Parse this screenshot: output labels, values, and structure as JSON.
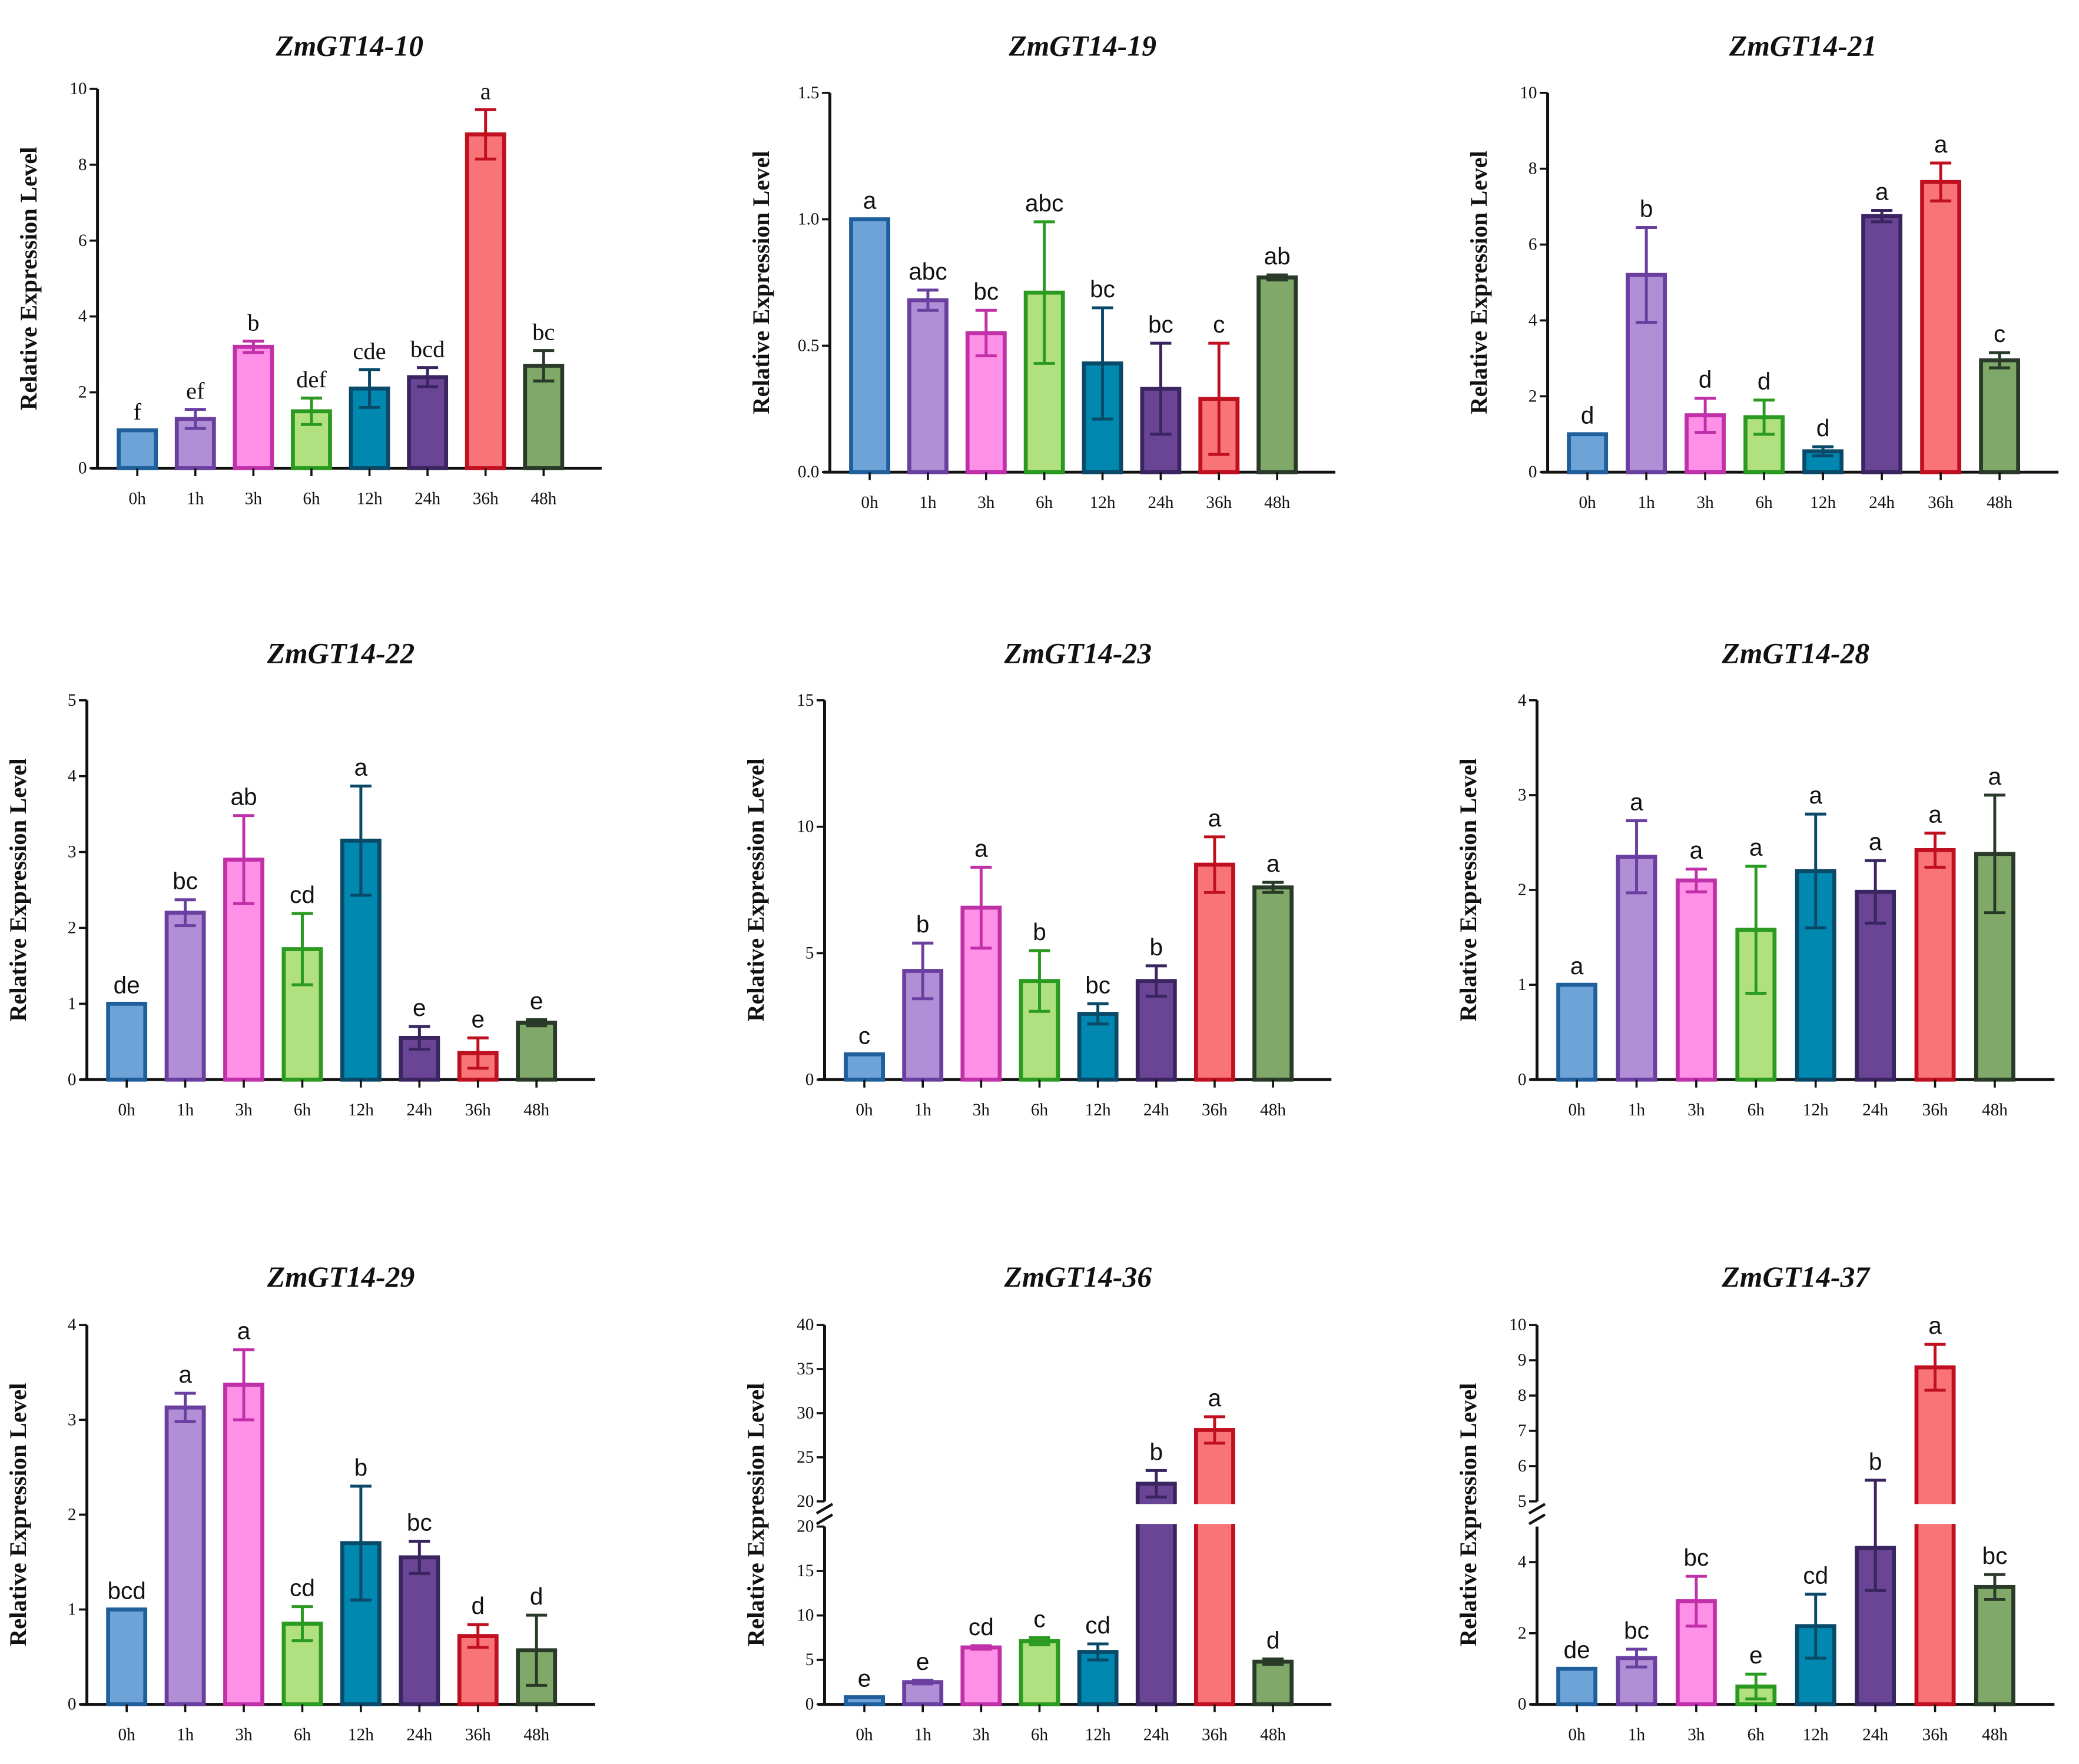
{
  "styles": {
    "fills": [
      "#6ea3d8",
      "#b08fd6",
      "#ff90e8",
      "#b0e080",
      "#0088b0",
      "#6a4596",
      "#f87478",
      "#80a868"
    ],
    "strokes": [
      "#1f5f9c",
      "#6a3fa0",
      "#c030a8",
      "#2a9a20",
      "#0a4a68",
      "#3a2560",
      "#c01020",
      "#2a3a28"
    ]
  },
  "chart_data": [
    {
      "type": "bar",
      "title": "ZmGT14-10",
      "ylabel": "Relative Expression Level",
      "categories": [
        "0h",
        "1h",
        "3h",
        "6h",
        "12h",
        "24h",
        "36h",
        "48h"
      ],
      "values": [
        1.0,
        1.3,
        3.2,
        1.5,
        2.1,
        2.4,
        8.8,
        2.7
      ],
      "errors": [
        0,
        0.25,
        0.15,
        0.35,
        0.5,
        0.25,
        0.65,
        0.4
      ],
      "letters": [
        "f",
        "ef",
        "b",
        "def",
        "cde",
        "bcd",
        "a",
        "bc"
      ],
      "ylim": [
        0,
        10
      ],
      "yticks": [
        "0",
        "2",
        "4",
        "6",
        "8",
        "10"
      ]
    },
    {
      "type": "bar",
      "title": "ZmGT14-19",
      "ylabel": "Relative Expression Level",
      "categories": [
        "0h",
        "1h",
        "3h",
        "6h",
        "12h",
        "24h",
        "36h",
        "48h"
      ],
      "values": [
        1.0,
        0.68,
        0.55,
        0.71,
        0.43,
        0.33,
        0.29,
        0.77
      ],
      "errors": [
        0,
        0.04,
        0.09,
        0.28,
        0.22,
        0.18,
        0.22,
        0.01
      ],
      "letters": [
        "a",
        "abc",
        "bc",
        "abc",
        "bc",
        "bc",
        "c",
        "ab"
      ],
      "ylim": [
        0,
        1.5
      ],
      "yticks": [
        "0.0",
        "0.5",
        "1.0",
        "1.5"
      ]
    },
    {
      "type": "bar",
      "title": "ZmGT14-21",
      "ylabel": "Relative Expression Level",
      "categories": [
        "0h",
        "1h",
        "3h",
        "6h",
        "12h",
        "24h",
        "36h",
        "48h"
      ],
      "values": [
        1.0,
        5.2,
        1.5,
        1.45,
        0.55,
        6.75,
        7.65,
        2.95
      ],
      "errors": [
        0,
        1.25,
        0.45,
        0.45,
        0.12,
        0.15,
        0.5,
        0.2
      ],
      "letters": [
        "d",
        "b",
        "d",
        "d",
        "d",
        "a",
        "a",
        "c"
      ],
      "ylim": [
        0,
        10
      ],
      "yticks": [
        "0",
        "2",
        "4",
        "6",
        "8",
        "10"
      ]
    },
    {
      "type": "bar",
      "title": "ZmGT14-22",
      "ylabel": "Relative Expression Level",
      "categories": [
        "0h",
        "1h",
        "3h",
        "6h",
        "12h",
        "24h",
        "36h",
        "48h"
      ],
      "values": [
        1.0,
        2.2,
        2.9,
        1.72,
        3.15,
        0.55,
        0.35,
        0.75
      ],
      "errors": [
        0,
        0.17,
        0.58,
        0.47,
        0.72,
        0.15,
        0.2,
        0.04
      ],
      "letters": [
        "de",
        "bc",
        "ab",
        "cd",
        "a",
        "e",
        "e",
        "e"
      ],
      "ylim": [
        0,
        5
      ],
      "yticks": [
        "0",
        "1",
        "2",
        "3",
        "4",
        "5"
      ]
    },
    {
      "type": "bar",
      "title": "ZmGT14-23",
      "ylabel": "Relative Expression Level",
      "categories": [
        "0h",
        "1h",
        "3h",
        "6h",
        "12h",
        "24h",
        "36h",
        "48h"
      ],
      "values": [
        1.0,
        4.3,
        6.8,
        3.9,
        2.6,
        3.9,
        8.5,
        7.6
      ],
      "errors": [
        0,
        1.1,
        1.6,
        1.2,
        0.4,
        0.6,
        1.1,
        0.2
      ],
      "letters": [
        "c",
        "b",
        "a",
        "b",
        "bc",
        "b",
        "a",
        "a"
      ],
      "ylim": [
        0,
        15
      ],
      "yticks": [
        "0",
        "5",
        "10",
        "15"
      ]
    },
    {
      "type": "bar",
      "title": "ZmGT14-28",
      "ylabel": "Relative Expression Level",
      "categories": [
        "0h",
        "1h",
        "3h",
        "6h",
        "12h",
        "24h",
        "36h",
        "48h"
      ],
      "values": [
        1.0,
        2.35,
        2.1,
        1.58,
        2.2,
        1.98,
        2.42,
        2.38
      ],
      "errors": [
        0,
        0.38,
        0.12,
        0.67,
        0.6,
        0.33,
        0.18,
        0.62
      ],
      "letters": [
        "a",
        "a",
        "a",
        "a",
        "a",
        "a",
        "a",
        "a"
      ],
      "ylim": [
        0,
        4
      ],
      "yticks": [
        "0",
        "1",
        "2",
        "3",
        "4"
      ]
    },
    {
      "type": "bar",
      "title": "ZmGT14-29",
      "ylabel": "Relative Expression Level",
      "categories": [
        "0h",
        "1h",
        "3h",
        "6h",
        "12h",
        "24h",
        "36h",
        "48h"
      ],
      "values": [
        1.0,
        3.13,
        3.37,
        0.85,
        1.7,
        1.55,
        0.72,
        0.57
      ],
      "errors": [
        0,
        0.15,
        0.37,
        0.18,
        0.6,
        0.17,
        0.12,
        0.37
      ],
      "letters": [
        "bcd",
        "a",
        "a",
        "cd",
        "b",
        "bc",
        "d",
        "d"
      ],
      "ylim": [
        0,
        4
      ],
      "yticks": [
        "0",
        "1",
        "2",
        "3",
        "4"
      ]
    },
    {
      "type": "bar",
      "title": "ZmGT14-36",
      "ylabel": "Relative Expression Level",
      "categories": [
        "0h",
        "1h",
        "3h",
        "6h",
        "12h",
        "24h",
        "36h",
        "48h"
      ],
      "values": [
        0.8,
        2.5,
        6.4,
        7.1,
        5.9,
        22.0,
        28.1,
        4.8
      ],
      "errors": [
        0,
        0.2,
        0.2,
        0.4,
        0.9,
        1.5,
        1.5,
        0.3
      ],
      "letters": [
        "e",
        "e",
        "cd",
        "c",
        "cd",
        "b",
        "a",
        "d"
      ],
      "broken_axis": {
        "lower": [
          0,
          20
        ],
        "upper": [
          20,
          40
        ]
      },
      "yticks_lower": [
        "0",
        "5",
        "10",
        "15",
        "20"
      ],
      "yticks_upper": [
        "20",
        "25",
        "30",
        "35",
        "40"
      ]
    },
    {
      "type": "bar",
      "title": "ZmGT14-37",
      "ylabel": "Relative Expression Level",
      "categories": [
        "0h",
        "1h",
        "3h",
        "6h",
        "12h",
        "24h",
        "36h",
        "48h"
      ],
      "values": [
        1.0,
        1.3,
        2.9,
        0.5,
        2.2,
        4.4,
        8.8,
        3.3
      ],
      "errors": [
        0,
        0.25,
        0.7,
        0.35,
        0.9,
        1.2,
        0.65,
        0.35
      ],
      "letters": [
        "de",
        "bc",
        "bc",
        "e",
        "cd",
        "b",
        "a",
        "bc"
      ],
      "broken_axis": {
        "lower": [
          0,
          5
        ],
        "upper": [
          5,
          10
        ]
      },
      "yticks_lower": [
        "0",
        "2",
        "4"
      ],
      "yticks_upper": [
        "5",
        "6",
        "7",
        "8",
        "9",
        "10"
      ]
    }
  ]
}
